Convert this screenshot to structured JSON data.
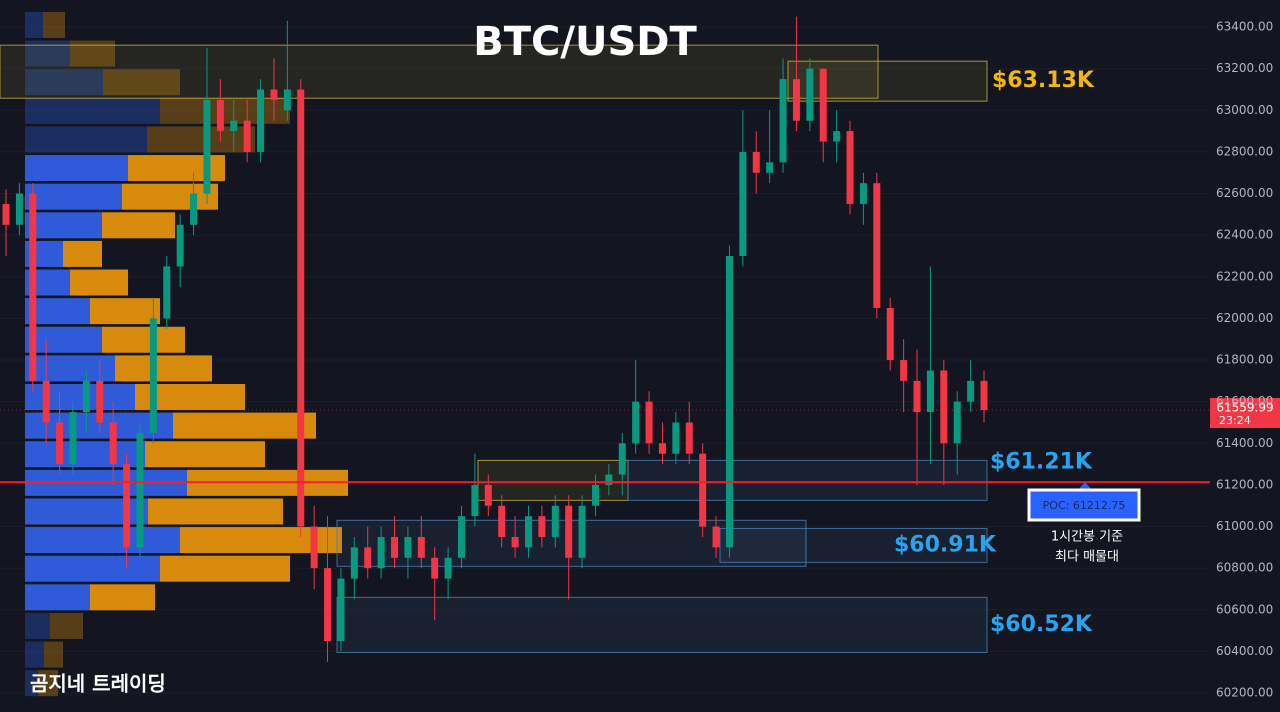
{
  "chart_data": {
    "type": "candlestick",
    "title": "BTC/USDT",
    "up_color": "#089981",
    "down_color": "#f23645",
    "open": [
      62550,
      62450,
      62600,
      61700,
      61500,
      61300,
      61550,
      61700,
      61500,
      61300,
      60900,
      61450,
      62000,
      62250,
      62450,
      62600,
      63050,
      62900,
      62950,
      62800,
      63100,
      63000,
      63100,
      61000,
      60800,
      60450,
      60750,
      60900,
      60800,
      60950,
      60850,
      60950,
      60850,
      60750,
      60850,
      61050,
      61200,
      61100,
      60950,
      60900,
      61050,
      60950,
      61100,
      60850,
      61100,
      61200,
      61250,
      61400,
      61600,
      61400,
      61350,
      61500,
      61350,
      61000,
      60900,
      62300,
      62800,
      62700,
      62750,
      63150,
      62950,
      63200,
      62850,
      62900,
      62550,
      62650,
      62050,
      61800,
      61700,
      61550,
      61750,
      61400,
      61600,
      61700
    ],
    "high": [
      62620,
      62650,
      62650,
      61900,
      61650,
      61600,
      61750,
      61800,
      61600,
      61350,
      61500,
      62100,
      62300,
      62500,
      62700,
      63300,
      63150,
      63050,
      63050,
      63150,
      63250,
      63430,
      63150,
      61100,
      61050,
      60800,
      60950,
      61000,
      61000,
      61050,
      61000,
      61050,
      60900,
      60900,
      61100,
      61350,
      61250,
      61150,
      61050,
      61100,
      61100,
      61150,
      61150,
      61150,
      61250,
      61300,
      61450,
      61800,
      61650,
      61500,
      61550,
      61600,
      61400,
      61050,
      62350,
      63000,
      62900,
      63000,
      63250,
      63450,
      63250,
      63200,
      63000,
      62950,
      62700,
      62700,
      62100,
      61900,
      61850,
      62250,
      61800,
      61650,
      61800,
      61750
    ],
    "low": [
      62300,
      62400,
      61650,
      61400,
      61250,
      61250,
      61450,
      61450,
      61200,
      60800,
      60850,
      61400,
      61950,
      62150,
      62400,
      62550,
      62850,
      62800,
      62750,
      62750,
      62950,
      62950,
      60950,
      60700,
      60350,
      60400,
      60650,
      60750,
      60750,
      60800,
      60750,
      60800,
      60550,
      60650,
      60800,
      61000,
      61050,
      60900,
      60850,
      60850,
      60900,
      60900,
      60650,
      60800,
      61050,
      61150,
      61150,
      61350,
      61350,
      61300,
      61300,
      61300,
      60950,
      60850,
      60850,
      62250,
      62600,
      62650,
      62700,
      62900,
      62900,
      62750,
      62750,
      62500,
      62450,
      62000,
      61750,
      61550,
      61200,
      61300,
      61200,
      61250,
      61550,
      61500
    ],
    "close": [
      62450,
      62600,
      61700,
      61500,
      61300,
      61550,
      61700,
      61500,
      61300,
      60900,
      61450,
      62000,
      62250,
      62450,
      62600,
      63050,
      62900,
      62950,
      62800,
      63100,
      63050,
      63100,
      61000,
      60800,
      60450,
      60750,
      60900,
      60800,
      60950,
      60850,
      60950,
      60850,
      60750,
      60850,
      61050,
      61200,
      61100,
      60950,
      60900,
      61050,
      60950,
      61100,
      60850,
      61100,
      61200,
      61250,
      61400,
      61600,
      61400,
      61350,
      61500,
      61350,
      61000,
      60900,
      62300,
      62800,
      62700,
      62750,
      63150,
      62950,
      63200,
      62850,
      62900,
      62550,
      62650,
      62050,
      61800,
      61700,
      61550,
      61750,
      61400,
      61600,
      61700,
      61559.99
    ],
    "countdown": "23:24",
    "ylim": [
      60109,
      63530
    ],
    "yticks": [
      {
        "value": 63400,
        "label": "63400.00"
      },
      {
        "value": 63200,
        "label": "63200.00"
      },
      {
        "value": 63000,
        "label": "63000.00"
      },
      {
        "value": 62800,
        "label": "62800.00"
      },
      {
        "value": 62600,
        "label": "62600.00"
      },
      {
        "value": 62400,
        "label": "62400.00"
      },
      {
        "value": 62200,
        "label": "62200.00"
      },
      {
        "value": 62000,
        "label": "62000.00"
      },
      {
        "value": 61800,
        "label": "61800.00"
      },
      {
        "value": 61600,
        "label": "61600.00"
      },
      {
        "value": 61400,
        "label": "61400.00"
      },
      {
        "value": 61200,
        "label": "61200.00"
      },
      {
        "value": 61000,
        "label": "61000.00"
      },
      {
        "value": 60800,
        "label": "60800.00"
      },
      {
        "value": 60600,
        "label": "60600.00"
      },
      {
        "value": 60400,
        "label": "60400.00"
      },
      {
        "value": 60200,
        "label": "60200.00"
      }
    ],
    "grid": true,
    "volume_profile": {
      "levels": [
        63410,
        63272.5,
        63135,
        62997.5,
        62860,
        62722.5,
        62585,
        62447.5,
        62310,
        62172.5,
        62035,
        61897.5,
        61760,
        61622.5,
        61485,
        61347.5,
        61210,
        61072.5,
        60935,
        60797.5,
        60660,
        60522.5,
        60385,
        60247.5
      ],
      "buy": [
        18,
        45,
        78,
        135,
        122,
        103,
        97,
        77,
        38,
        45,
        65,
        77,
        90,
        110,
        148,
        120,
        162,
        123,
        155,
        135,
        65,
        25,
        19,
        13
      ],
      "sell": [
        22,
        45,
        77,
        130,
        108,
        97,
        96,
        73,
        39,
        58,
        70,
        83,
        97,
        110,
        143,
        120,
        161,
        135,
        162,
        130,
        65,
        33,
        19,
        20
      ],
      "buy_color": "#2f5bd8",
      "sell_color": "#d88a0c",
      "value_area": [
        60660,
        62722.5
      ],
      "poc": 61212.75,
      "poc_label": "POC: 61212.75",
      "poc_color": "#f2202b"
    },
    "zones": [
      {
        "top": 63313,
        "bottom": 63058,
        "color": "#c9b23c"
      },
      {
        "top": 63236,
        "bottom": 63044,
        "color": "#c9b23c",
        "label": "$63.13K"
      },
      {
        "top": 61318,
        "bottom": 61126,
        "color": "#c9b23c"
      },
      {
        "top": 61318,
        "bottom": 61126,
        "color": "#4a7fb8",
        "label": "$61.21K"
      },
      {
        "top": 61030,
        "bottom": 60809,
        "color": "#4a7fb8"
      },
      {
        "top": 60991,
        "bottom": 60828,
        "color": "#4a7fb8",
        "label": "$60.91K"
      },
      {
        "top": 60660,
        "bottom": 60395,
        "color": "#4a7fb8",
        "label": "$60.52K"
      }
    ],
    "label_colors": [
      "#f5b510",
      "#29a3ef"
    ],
    "annotation": [
      "1시간봉 기준",
      "최다 매물대"
    ],
    "watermark": "곰지네 트레이딩"
  }
}
